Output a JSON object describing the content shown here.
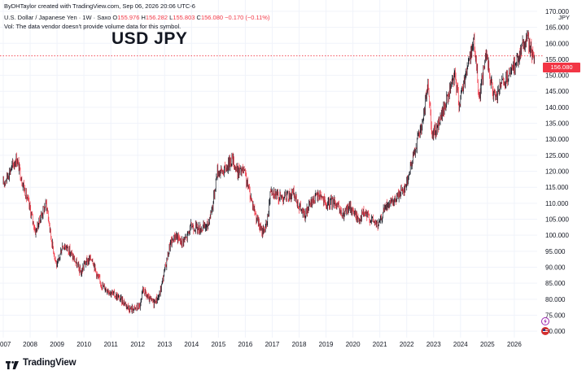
{
  "header": {
    "attribution": "ByDHTaylor created with TradingView.com, Sep 06, 2026 20:06 UTC-6",
    "symbol_desc": "U.S. Dollar / Japanese Yen · 1W · Saxo",
    "ohlc": {
      "o_key": "O",
      "o_val": "155.976",
      "h_key": "H",
      "h_val": "156.282",
      "l_key": "L",
      "l_val": "155.803",
      "c_key": "C",
      "c_val": "156.080",
      "change": "−0.170 (−0.11%)"
    },
    "volume_note": "Vol: The data vendor doesn't provide volume data for this symbol."
  },
  "title": "USD JPY",
  "currency_label": "JPY",
  "last_price_tag": "156.080",
  "footer": {
    "brand": "TradingView"
  },
  "icons": {
    "flash": "flash-icon",
    "flag": "us-flag-icon",
    "logo": "tradingview-logo-icon"
  },
  "colors": {
    "down": "#f23645",
    "up": "#131722",
    "price_line": "#f23645",
    "grid": "#f0f3fa"
  },
  "chart_data": {
    "type": "candlestick",
    "symbol": "USDJPY",
    "interval": "1W",
    "x_ticks": [
      "007",
      "2008",
      "2009",
      "2010",
      "2011",
      "2012",
      "2013",
      "2014",
      "2015",
      "2016",
      "2017",
      "2018",
      "2019",
      "2020",
      "2021",
      "2022",
      "2023",
      "2024",
      "2025",
      "2026"
    ],
    "y_ticks": [
      70,
      75,
      80,
      85,
      90,
      95,
      100,
      105,
      110,
      115,
      120,
      125,
      130,
      135,
      140,
      145,
      150,
      155,
      160,
      165,
      170
    ],
    "y_tick_labels": [
      "70.000",
      "75.000",
      "80.000",
      "85.000",
      "90.000",
      "95.000",
      "100.000",
      "105.000",
      "110.000",
      "115.000",
      "120.000",
      "125.000",
      "130.000",
      "135.000",
      "140.000",
      "145.000",
      "150.000",
      "155.000",
      "160.000",
      "165.000",
      "170.000"
    ],
    "ylim": [
      68,
      171
    ],
    "xlim": [
      2007.0,
      2026.85
    ],
    "last_close": 156.08,
    "path": [
      [
        2007.0,
        116
      ],
      [
        2007.3,
        121
      ],
      [
        2007.5,
        124
      ],
      [
        2007.7,
        117
      ],
      [
        2008.0,
        108
      ],
      [
        2008.2,
        101
      ],
      [
        2008.4,
        106
      ],
      [
        2008.6,
        110
      ],
      [
        2008.8,
        98
      ],
      [
        2009.0,
        90
      ],
      [
        2009.2,
        97
      ],
      [
        2009.4,
        96
      ],
      [
        2009.6,
        93
      ],
      [
        2009.9,
        88
      ],
      [
        2010.0,
        91
      ],
      [
        2010.3,
        93
      ],
      [
        2010.5,
        87
      ],
      [
        2010.7,
        84
      ],
      [
        2010.9,
        83
      ],
      [
        2011.0,
        82
      ],
      [
        2011.2,
        81
      ],
      [
        2011.5,
        79
      ],
      [
        2011.7,
        77
      ],
      [
        2011.9,
        77
      ],
      [
        2012.1,
        78
      ],
      [
        2012.2,
        83
      ],
      [
        2012.4,
        80
      ],
      [
        2012.6,
        79
      ],
      [
        2012.8,
        81
      ],
      [
        2013.0,
        89
      ],
      [
        2013.2,
        97
      ],
      [
        2013.4,
        100
      ],
      [
        2013.6,
        98
      ],
      [
        2013.8,
        99
      ],
      [
        2014.0,
        103
      ],
      [
        2014.3,
        102
      ],
      [
        2014.6,
        103
      ],
      [
        2014.8,
        110
      ],
      [
        2014.95,
        120
      ],
      [
        2015.2,
        120
      ],
      [
        2015.5,
        124
      ],
      [
        2015.7,
        120
      ],
      [
        2015.95,
        120
      ],
      [
        2016.2,
        112
      ],
      [
        2016.4,
        106
      ],
      [
        2016.6,
        101
      ],
      [
        2016.8,
        103
      ],
      [
        2016.95,
        115
      ],
      [
        2017.2,
        112
      ],
      [
        2017.5,
        112
      ],
      [
        2017.8,
        113
      ],
      [
        2018.0,
        109
      ],
      [
        2018.2,
        106
      ],
      [
        2018.5,
        111
      ],
      [
        2018.8,
        113
      ],
      [
        2019.0,
        109
      ],
      [
        2019.3,
        111
      ],
      [
        2019.6,
        106
      ],
      [
        2019.9,
        109
      ],
      [
        2020.2,
        105
      ],
      [
        2020.4,
        107
      ],
      [
        2020.7,
        105
      ],
      [
        2020.95,
        103
      ],
      [
        2021.2,
        109
      ],
      [
        2021.5,
        110
      ],
      [
        2021.8,
        114
      ],
      [
        2021.95,
        115
      ],
      [
        2022.2,
        123
      ],
      [
        2022.4,
        130
      ],
      [
        2022.6,
        135
      ],
      [
        2022.8,
        148
      ],
      [
        2022.95,
        131
      ],
      [
        2023.1,
        133
      ],
      [
        2023.4,
        140
      ],
      [
        2023.6,
        145
      ],
      [
        2023.8,
        150
      ],
      [
        2023.95,
        141
      ],
      [
        2024.2,
        151
      ],
      [
        2024.5,
        161
      ],
      [
        2024.7,
        143
      ],
      [
        2024.95,
        157
      ],
      [
        2025.1,
        149
      ],
      [
        2025.3,
        142
      ],
      [
        2025.5,
        147
      ],
      [
        2025.7,
        148
      ],
      [
        2025.9,
        151
      ],
      [
        2026.1,
        155
      ],
      [
        2026.3,
        159
      ],
      [
        2026.5,
        162
      ],
      [
        2026.6,
        158
      ],
      [
        2026.75,
        156
      ]
    ]
  }
}
